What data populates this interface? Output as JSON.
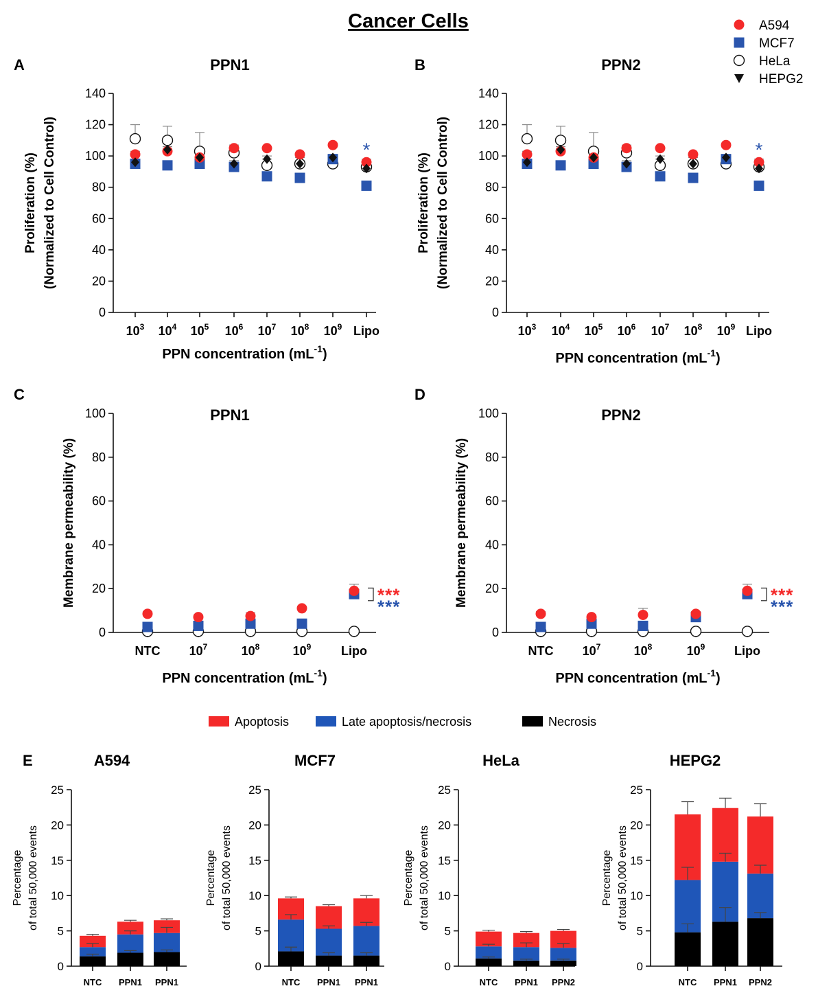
{
  "figure_title": "Cancer Cells",
  "colors": {
    "A594": "#f42a2a",
    "MCF7": "#2a55ad",
    "HeLa": "#ffffff",
    "HEPG2": "#111111",
    "apoptosis": "#f42a2a",
    "late": "#1f56b8",
    "necrosis": "#000000",
    "error_bar": "#888888",
    "axis": "#111111"
  },
  "legend_markers": {
    "title_position": "top-right",
    "items": [
      {
        "label": "A594",
        "marker": "circle-filled",
        "color_key": "A594"
      },
      {
        "label": "MCF7",
        "marker": "square-filled",
        "color_key": "MCF7"
      },
      {
        "label": "HeLa",
        "marker": "circle-open",
        "color_key": "HeLa"
      },
      {
        "label": "HEPG2",
        "marker": "triangle-down-filled",
        "color_key": "HEPG2"
      }
    ]
  },
  "legend_bars": {
    "position": "between-D-and-E",
    "items": [
      {
        "label": "Apoptosis",
        "color_key": "apoptosis"
      },
      {
        "label": "Late apoptosis/necrosis",
        "color_key": "late"
      },
      {
        "label": "Necrosis",
        "color_key": "necrosis"
      }
    ]
  },
  "chart_data": [
    {
      "id": "A",
      "panel_label": "A",
      "type": "scatter",
      "title": "PPN1",
      "xlabel_main": "PPN concentration (mL",
      "xlabel_sup": "-1",
      "xlabel_tail": ")",
      "ylabel": [
        "Proliferation (%)",
        "(Normalized to Cell Control)"
      ],
      "ylim": [
        0,
        140
      ],
      "yticks": [
        0,
        20,
        40,
        60,
        80,
        100,
        120,
        140
      ],
      "categories": [
        {
          "base": "10",
          "sup": "3"
        },
        {
          "base": "10",
          "sup": "4"
        },
        {
          "base": "10",
          "sup": "5"
        },
        {
          "base": "10",
          "sup": "6"
        },
        {
          "base": "10",
          "sup": "7"
        },
        {
          "base": "10",
          "sup": "8"
        },
        {
          "base": "10",
          "sup": "9"
        },
        {
          "base": "Lipo",
          "sup": ""
        }
      ],
      "series": [
        {
          "name": "A594",
          "values": [
            101,
            103,
            99,
            105,
            105,
            101,
            107,
            96
          ],
          "errors": [
            2,
            2,
            2,
            2,
            1,
            1,
            1,
            2
          ]
        },
        {
          "name": "MCF7",
          "values": [
            95,
            94,
            95,
            93,
            87,
            86,
            98,
            81
          ],
          "errors": [
            2,
            1,
            3,
            3,
            2,
            3,
            2,
            3
          ]
        },
        {
          "name": "HeLa",
          "values": [
            111,
            110,
            103,
            102,
            94,
            95,
            95,
            93
          ],
          "errors": [
            9,
            9,
            12,
            4,
            4,
            4,
            4,
            3
          ]
        },
        {
          "name": "HEPG2",
          "values": [
            96,
            104,
            99,
            95,
            98,
            95,
            99,
            92
          ],
          "errors": [
            2,
            2,
            2,
            2,
            2,
            2,
            2,
            2
          ]
        }
      ],
      "annotations": [
        {
          "category": 7,
          "text": "*",
          "color_key": "MCF7",
          "value": 106
        }
      ]
    },
    {
      "id": "B",
      "panel_label": "B",
      "type": "scatter",
      "title": "PPN2",
      "xlabel_main": "PPN concentration (mL",
      "xlabel_sup": "-1",
      "xlabel_tail": ")",
      "ylabel": [
        "Proliferation (%)",
        "(Normalized to Cell Control)"
      ],
      "ylim": [
        0,
        140
      ],
      "yticks": [
        0,
        20,
        40,
        60,
        80,
        100,
        120,
        140
      ],
      "categories": [
        {
          "base": "10",
          "sup": "3"
        },
        {
          "base": "10",
          "sup": "4"
        },
        {
          "base": "10",
          "sup": "5"
        },
        {
          "base": "10",
          "sup": "6"
        },
        {
          "base": "10",
          "sup": "7"
        },
        {
          "base": "10",
          "sup": "8"
        },
        {
          "base": "10",
          "sup": "9"
        },
        {
          "base": "Lipo",
          "sup": ""
        }
      ],
      "series": [
        {
          "name": "A594",
          "values": [
            101,
            103,
            99,
            105,
            105,
            101,
            107,
            96
          ],
          "errors": [
            2,
            2,
            2,
            2,
            1,
            1,
            1,
            2
          ]
        },
        {
          "name": "MCF7",
          "values": [
            95,
            94,
            95,
            93,
            87,
            86,
            98,
            81
          ],
          "errors": [
            2,
            1,
            3,
            3,
            2,
            3,
            2,
            3
          ]
        },
        {
          "name": "HeLa",
          "values": [
            111,
            110,
            103,
            102,
            94,
            95,
            95,
            93
          ],
          "errors": [
            9,
            9,
            12,
            4,
            4,
            4,
            4,
            3
          ]
        },
        {
          "name": "HEPG2",
          "values": [
            96,
            104,
            99,
            95,
            98,
            95,
            99,
            92
          ],
          "errors": [
            2,
            2,
            2,
            2,
            2,
            2,
            2,
            2
          ]
        }
      ],
      "annotations": [
        {
          "category": 7,
          "text": "*",
          "color_key": "MCF7",
          "value": 106
        }
      ]
    },
    {
      "id": "C",
      "panel_label": "C",
      "type": "scatter",
      "title": "PPN1",
      "xlabel_main": "PPN concentration (mL",
      "xlabel_sup": "-1",
      "xlabel_tail": ")",
      "ylabel": [
        "Membrane permeability (%)"
      ],
      "ylim": [
        0,
        100
      ],
      "yticks": [
        0,
        20,
        40,
        60,
        80,
        100
      ],
      "categories": [
        {
          "base": "NTC",
          "sup": ""
        },
        {
          "base": "10",
          "sup": "7"
        },
        {
          "base": "10",
          "sup": "8"
        },
        {
          "base": "10",
          "sup": "9"
        },
        {
          "base": "Lipo",
          "sup": ""
        }
      ],
      "series": [
        {
          "name": "A594",
          "values": [
            8.5,
            7,
            7.5,
            11,
            19
          ],
          "errors": [
            1,
            1,
            1.5,
            1,
            3
          ]
        },
        {
          "name": "MCF7",
          "values": [
            2.5,
            3,
            4,
            4,
            17.5
          ],
          "errors": [
            1,
            1,
            1,
            1,
            1
          ]
        },
        {
          "name": "HeLa",
          "values": [
            0.5,
            0.5,
            0.5,
            0.5,
            0.5
          ],
          "errors": [
            0.3,
            0.3,
            0.3,
            0.3,
            0.3
          ]
        }
      ],
      "significance": {
        "category": 4,
        "from": 19,
        "to": 17,
        "lines": [
          {
            "text": "***",
            "color_key": "A594"
          },
          {
            "text": "***",
            "color_key": "MCF7"
          }
        ]
      }
    },
    {
      "id": "D",
      "panel_label": "D",
      "type": "scatter",
      "title": "PPN2",
      "xlabel_main": "PPN concentration (mL",
      "xlabel_sup": "-1",
      "xlabel_tail": ")",
      "ylabel": [
        "Membrane permeability (%)"
      ],
      "ylim": [
        0,
        100
      ],
      "yticks": [
        0,
        20,
        40,
        60,
        80,
        100
      ],
      "categories": [
        {
          "base": "NTC",
          "sup": ""
        },
        {
          "base": "10",
          "sup": "7"
        },
        {
          "base": "10",
          "sup": "8"
        },
        {
          "base": "10",
          "sup": "9"
        },
        {
          "base": "Lipo",
          "sup": ""
        }
      ],
      "series": [
        {
          "name": "A594",
          "values": [
            8.5,
            7,
            8,
            8.5,
            19
          ],
          "errors": [
            1,
            1,
            3,
            1,
            3
          ]
        },
        {
          "name": "MCF7",
          "values": [
            2.5,
            4,
            3,
            7,
            17.5
          ],
          "errors": [
            1,
            1,
            1,
            1,
            1
          ]
        },
        {
          "name": "HeLa",
          "values": [
            0.5,
            0.5,
            0.5,
            0.5,
            0.5
          ],
          "errors": [
            0.3,
            0.3,
            0.3,
            0.3,
            0.3
          ]
        }
      ],
      "significance": {
        "category": 4,
        "from": 19,
        "to": 17,
        "lines": [
          {
            "text": "***",
            "color_key": "A594"
          },
          {
            "text": "***",
            "color_key": "MCF7"
          }
        ]
      }
    },
    {
      "id": "E1",
      "panel_label": "E",
      "type": "bar",
      "stacked": true,
      "title": "A594",
      "ylabel": [
        "Percentage",
        "of total 50,000 events"
      ],
      "ylim": [
        0,
        25
      ],
      "yticks": [
        0,
        5,
        10,
        15,
        20,
        25
      ],
      "categories": [
        "NTC",
        "PPN1",
        "PPN1"
      ],
      "series": [
        {
          "name": "Necrosis",
          "color_key": "necrosis",
          "values": [
            1.4,
            1.9,
            2.0
          ],
          "errors": [
            0.3,
            0.3,
            0.3
          ]
        },
        {
          "name": "Late apoptosis/necrosis",
          "color_key": "late",
          "values": [
            1.3,
            2.6,
            2.7
          ],
          "errors": [
            0.5,
            0.5,
            0.8
          ]
        },
        {
          "name": "Apoptosis",
          "color_key": "apoptosis",
          "values": [
            1.6,
            1.8,
            1.8
          ],
          "errors": [
            0.2,
            0.2,
            0.2
          ]
        }
      ]
    },
    {
      "id": "E2",
      "panel_label": "",
      "type": "bar",
      "stacked": true,
      "title": "MCF7",
      "ylabel": [
        "Percentage",
        "of total 50,000 events"
      ],
      "ylim": [
        0,
        25
      ],
      "yticks": [
        0,
        5,
        10,
        15,
        20,
        25
      ],
      "categories": [
        "NTC",
        "PPN1",
        "PPN1"
      ],
      "series": [
        {
          "name": "Necrosis",
          "color_key": "necrosis",
          "values": [
            2.1,
            1.5,
            1.5
          ],
          "errors": [
            0.6,
            0.4,
            0.4
          ]
        },
        {
          "name": "Late apoptosis/necrosis",
          "color_key": "late",
          "values": [
            4.5,
            3.8,
            4.2
          ],
          "errors": [
            0.7,
            0.4,
            0.5
          ]
        },
        {
          "name": "Apoptosis",
          "color_key": "apoptosis",
          "values": [
            3.0,
            3.2,
            3.9
          ],
          "errors": [
            0.2,
            0.2,
            0.4
          ]
        }
      ]
    },
    {
      "id": "E3",
      "panel_label": "",
      "type": "bar",
      "stacked": true,
      "title": "HeLa",
      "ylabel": [
        "Percentage",
        "of total 50,000 events"
      ],
      "ylim": [
        0,
        25
      ],
      "yticks": [
        0,
        5,
        10,
        15,
        20,
        25
      ],
      "categories": [
        "NTC",
        "PPN1",
        "PPN2"
      ],
      "series": [
        {
          "name": "Necrosis",
          "color_key": "necrosis",
          "values": [
            1.1,
            0.8,
            0.8
          ],
          "errors": [
            0.2,
            0.2,
            0.2
          ]
        },
        {
          "name": "Late apoptosis/necrosis",
          "color_key": "late",
          "values": [
            1.7,
            1.9,
            1.8
          ],
          "errors": [
            0.3,
            0.6,
            0.6
          ]
        },
        {
          "name": "Apoptosis",
          "color_key": "apoptosis",
          "values": [
            2.1,
            2.0,
            2.4
          ],
          "errors": [
            0.2,
            0.2,
            0.2
          ]
        }
      ]
    },
    {
      "id": "E4",
      "panel_label": "",
      "type": "bar",
      "stacked": true,
      "title": "HEPG2",
      "ylabel": [
        "Percentage",
        "of total 50,000 events"
      ],
      "ylim": [
        0,
        25
      ],
      "yticks": [
        0,
        5,
        10,
        15,
        20,
        25
      ],
      "categories": [
        "NTC",
        "PPN1",
        "PPN2"
      ],
      "series": [
        {
          "name": "Necrosis",
          "color_key": "necrosis",
          "values": [
            4.8,
            6.3,
            6.8
          ],
          "errors": [
            1.2,
            2.0,
            0.8
          ]
        },
        {
          "name": "Late apoptosis/necrosis",
          "color_key": "late",
          "values": [
            7.4,
            8.5,
            6.3
          ],
          "errors": [
            1.8,
            1.2,
            1.2
          ]
        },
        {
          "name": "Apoptosis",
          "color_key": "apoptosis",
          "values": [
            9.3,
            7.6,
            8.1
          ],
          "errors": [
            1.8,
            1.4,
            1.8
          ]
        }
      ]
    }
  ]
}
